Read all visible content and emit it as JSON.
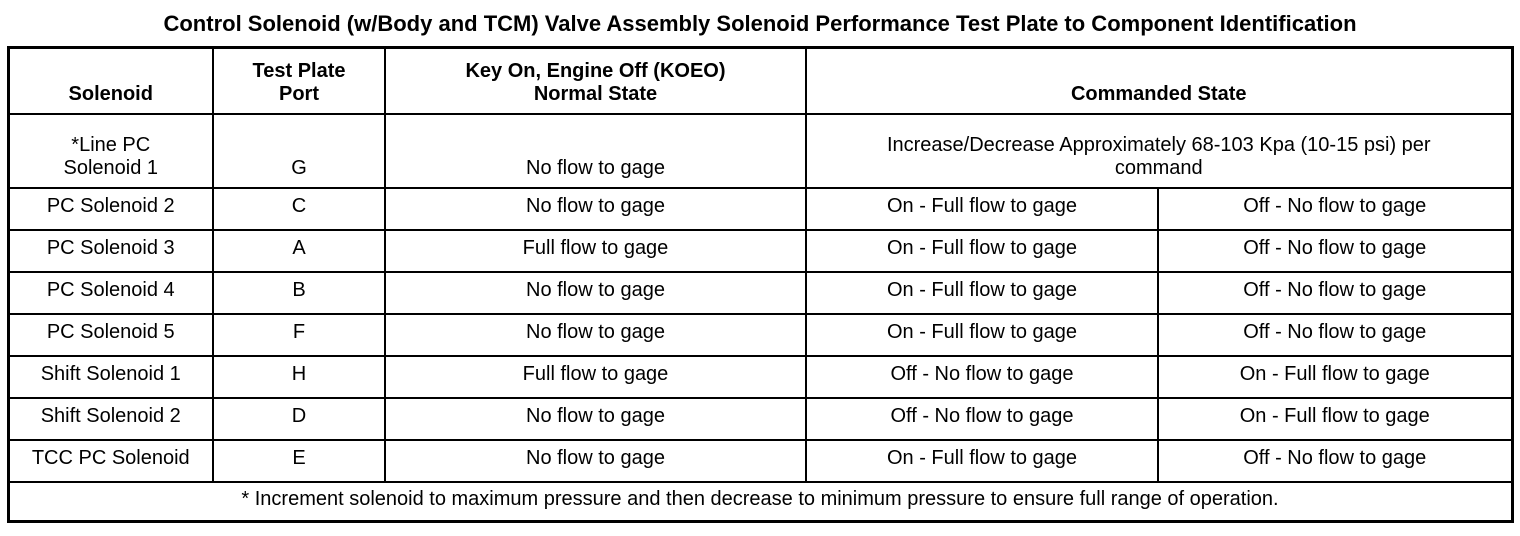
{
  "page": {
    "title": "Control Solenoid (w/Body and TCM) Valve Assembly Solenoid Performance Test Plate to Component Identification"
  },
  "table": {
    "headers": {
      "solenoid": "Solenoid",
      "port": "Test Plate\nPort",
      "koeo": "Key On, Engine Off (KOEO)\nNormal State",
      "commanded": "Commanded State"
    },
    "rows": [
      {
        "solenoid": "*Line PC\nSolenoid 1",
        "port": "G",
        "koeo": "No flow to gage",
        "commanded": "Increase/Decrease Approximately 68-103 Kpa (10-15 psi) per\ncommand"
      },
      {
        "solenoid": "PC Solenoid 2",
        "port": "C",
        "koeo": "No flow to gage",
        "commanded": [
          "On - Full flow to gage",
          "Off - No flow to gage"
        ]
      },
      {
        "solenoid": "PC Solenoid 3",
        "port": "A",
        "koeo": "Full flow to gage",
        "commanded": [
          "On - Full flow to gage",
          "Off - No flow to gage"
        ]
      },
      {
        "solenoid": "PC Solenoid 4",
        "port": "B",
        "koeo": "No flow to gage",
        "commanded": [
          "On - Full flow to gage",
          "Off - No flow to gage"
        ]
      },
      {
        "solenoid": "PC Solenoid 5",
        "port": "F",
        "koeo": "No flow to gage",
        "commanded": [
          "On - Full flow to gage",
          "Off - No flow to gage"
        ]
      },
      {
        "solenoid": "Shift Solenoid 1",
        "port": "H",
        "koeo": "Full flow to gage",
        "commanded": [
          "Off - No flow to gage",
          "On - Full flow to gage"
        ]
      },
      {
        "solenoid": "Shift Solenoid 2",
        "port": "D",
        "koeo": "No flow to gage",
        "commanded": [
          "Off - No flow to gage",
          "On - Full flow to gage"
        ]
      },
      {
        "solenoid": "TCC PC Solenoid",
        "port": "E",
        "koeo": "No flow to gage",
        "commanded": [
          "On - Full flow to gage",
          "Off - No flow to gage"
        ]
      }
    ],
    "footnote": "* Increment solenoid to maximum pressure and then decrease to minimum pressure to ensure full range of operation.",
    "colors": {
      "border": "#000000",
      "text": "#000000",
      "background": "#ffffff"
    }
  }
}
